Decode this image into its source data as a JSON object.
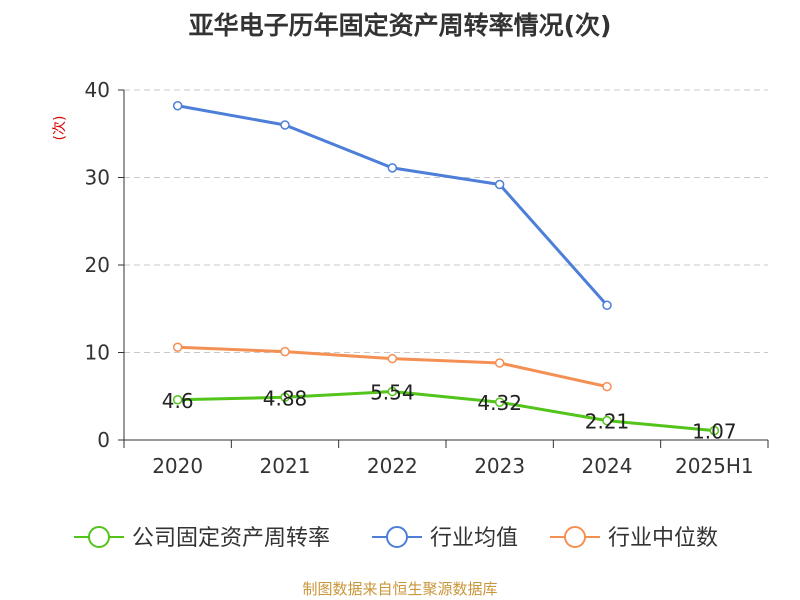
{
  "chart_data": {
    "type": "line",
    "title": "亚华电子历年固定资产周转率情况(次)",
    "ylabel": "(次)",
    "xlabel": "",
    "categories": [
      "2020",
      "2021",
      "2022",
      "2023",
      "2024",
      "2025H1"
    ],
    "ylim": [
      0,
      40
    ],
    "yticks": [
      0,
      10,
      20,
      30,
      40
    ],
    "grid": "horizontal dashed",
    "legend_position": "bottom",
    "series": [
      {
        "name": "公司固定资产周转率",
        "color": "#52c41a",
        "values": [
          4.6,
          4.88,
          5.54,
          4.32,
          2.21,
          1.07
        ],
        "labels": [
          "4.6",
          "4.88",
          "5.54",
          "4.32",
          "2.21",
          "1.07"
        ]
      },
      {
        "name": "行业均值",
        "color": "#4e7fd8",
        "values": [
          38.2,
          36.0,
          31.1,
          29.2,
          15.4,
          null
        ]
      },
      {
        "name": "行业中位数",
        "color": "#f59054",
        "values": [
          10.6,
          10.1,
          9.3,
          8.8,
          6.1,
          null
        ]
      }
    ]
  },
  "source": "制图数据来自恒生聚源数据库"
}
